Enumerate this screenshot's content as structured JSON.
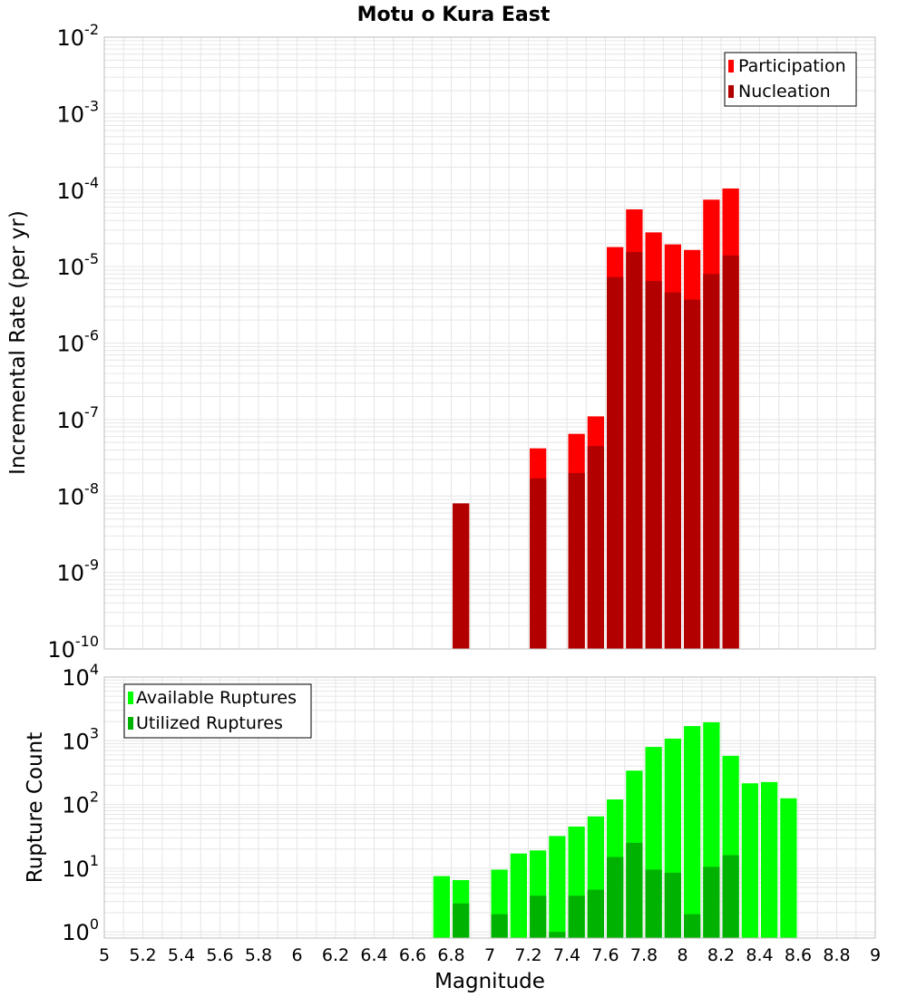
{
  "title": "Motu o Kura East",
  "colors": {
    "participation": "#ff0000",
    "nucleation": "#b20000",
    "available": "#00ff00",
    "utilized": "#00b200",
    "grid": "#e6e6e6",
    "plot_border": "#bdbdbd"
  },
  "top_panel": {
    "ylabel": "Incremental Rate (per yr)",
    "y_tick_mantissa": "10",
    "y_tick_exponents": [
      "-10",
      "-9",
      "-8",
      "-7",
      "-6",
      "-5",
      "-4",
      "-3",
      "-2"
    ],
    "legend": [
      "Participation",
      "Nucleation"
    ]
  },
  "bottom_panel": {
    "ylabel": "Rupture Count",
    "y_tick_mantissa": "10",
    "y_tick_exponents": [
      "0",
      "1",
      "2",
      "3",
      "4"
    ],
    "legend": [
      "Available Ruptures",
      "Utilized Ruptures"
    ]
  },
  "x_axis": {
    "label": "Magnitude",
    "ticks": [
      "5",
      "5.2",
      "5.4",
      "5.6",
      "5.8",
      "6",
      "6.2",
      "6.4",
      "6.6",
      "6.8",
      "7",
      "7.2",
      "7.4",
      "7.6",
      "7.8",
      "8",
      "8.2",
      "8.4",
      "8.6",
      "8.8",
      "9"
    ]
  },
  "chart_data": [
    {
      "type": "bar",
      "title": "Motu o Kura East",
      "xlabel": "",
      "ylabel": "Incremental Rate (per yr)",
      "xlim": [
        5,
        9
      ],
      "ylim": [
        1e-10,
        0.01
      ],
      "y_scale": "log",
      "bin_width": 0.1,
      "grid": true,
      "legend_position": "top-right",
      "x": [
        6.85,
        7.25,
        7.45,
        7.55,
        7.65,
        7.75,
        7.85,
        7.95,
        8.05,
        8.15,
        8.25
      ],
      "series": [
        {
          "name": "Participation",
          "values": [
            8e-09,
            4.2e-08,
            6.5e-08,
            1.1e-07,
            1.8e-05,
            5.6e-05,
            2.8e-05,
            1.95e-05,
            1.65e-05,
            7.5e-05,
            0.000105
          ]
        },
        {
          "name": "Nucleation",
          "values": [
            8e-09,
            1.7e-08,
            2e-08,
            4.5e-08,
            7.3e-06,
            1.55e-05,
            6.5e-06,
            4.6e-06,
            3.7e-06,
            8e-06,
            1.4e-05
          ]
        }
      ]
    },
    {
      "type": "bar",
      "title": "",
      "xlabel": "Magnitude",
      "ylabel": "Rupture Count",
      "xlim": [
        5,
        9
      ],
      "ylim": [
        0.8,
        10000
      ],
      "y_scale": "log",
      "bin_width": 0.1,
      "grid": true,
      "legend_position": "top-left",
      "x": [
        6.75,
        6.85,
        7.05,
        7.15,
        7.25,
        7.35,
        7.45,
        7.55,
        7.65,
        7.75,
        7.85,
        7.95,
        8.05,
        8.15,
        8.25,
        8.35,
        8.45,
        8.55
      ],
      "series": [
        {
          "name": "Available Ruptures",
          "values": [
            7.5,
            6.5,
            9.5,
            17,
            19,
            32,
            45,
            65,
            120,
            340,
            800,
            1080,
            1700,
            1950,
            580,
            215,
            225,
            125
          ]
        },
        {
          "name": "Utilized Ruptures",
          "values": [
            0,
            2.8,
            1.9,
            0,
            3.7,
            1,
            3.7,
            4.6,
            15,
            25,
            9.5,
            8.5,
            1.9,
            10.5,
            16,
            0,
            0,
            0
          ]
        }
      ]
    }
  ]
}
